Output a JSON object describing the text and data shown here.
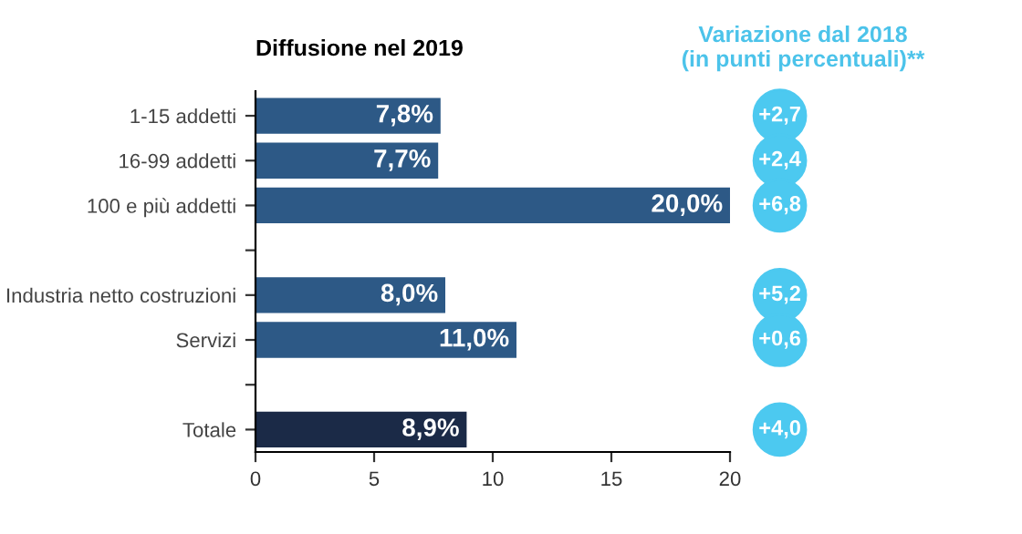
{
  "chart_data": {
    "type": "bar",
    "orientation": "horizontal",
    "title": "Diffusione nel 2019",
    "categories": [
      "1-15 addetti",
      "16-99 addetti",
      "100 e più addetti",
      null,
      "Industria netto costruzioni",
      "Servizi",
      null,
      "Totale"
    ],
    "values": [
      7.8,
      7.7,
      20.0,
      null,
      8.0,
      11.0,
      null,
      8.9
    ],
    "colors": [
      "#2d5986",
      "#2d5986",
      "#2d5986",
      "#2d5986",
      "#2d5986",
      "#2d5986",
      "#2d5986",
      "#1b2a47"
    ],
    "value_labels": [
      "7,8%",
      "7,7%",
      "20,0%",
      null,
      "8,0%",
      "11,0%",
      null,
      "8,9%"
    ],
    "xlim": [
      0,
      20
    ],
    "xticks": [
      0,
      5,
      10,
      15,
      20
    ],
    "grid": false,
    "legend": false,
    "annotations": [
      "Variazione dal 2018\n(in punti percentuali)**",
      "+2,7",
      "+2,4",
      "+6,8",
      "+5,2",
      "+0,6",
      "+4,0"
    ]
  }
}
